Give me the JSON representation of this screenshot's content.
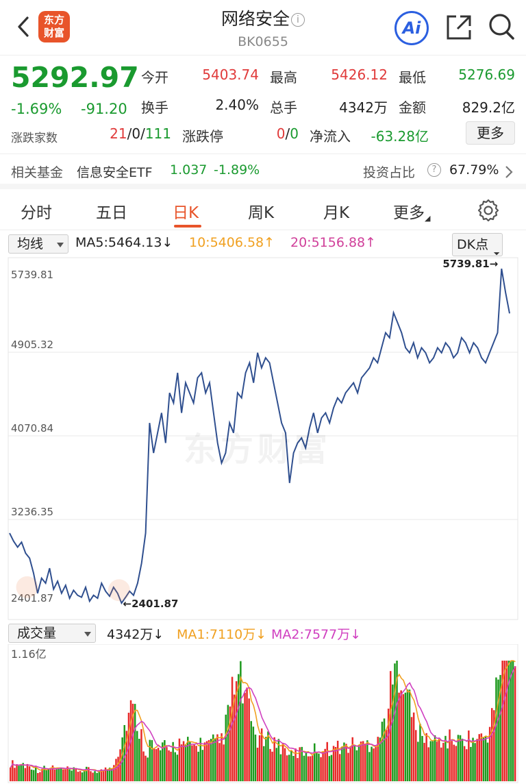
{
  "header": {
    "title": "网络安全",
    "info_glyph": "i",
    "code": "BK0655",
    "logo_text_line1": "东方",
    "logo_text_line2": "财富",
    "ai_label": "Ai"
  },
  "quote": {
    "price": "5292.97",
    "change_pct": "-1.69%",
    "change_abs": "-91.20",
    "open_label": "今开",
    "open_value": "5403.74",
    "high_label": "最高",
    "high_value": "5426.12",
    "low_label": "最低",
    "low_value": "5276.69",
    "turnover_label": "换手",
    "turnover_value": "2.40%",
    "volume_label": "总手",
    "volume_value": "4342万",
    "amount_label": "金额",
    "amount_value": "829.2亿",
    "breadth_label": "涨跌家数",
    "breadth_up": "21",
    "breadth_flat": "0",
    "breadth_down": "111",
    "sep": "/",
    "limit_label": "涨跌停",
    "limit_up": "0",
    "limit_down": "0",
    "netflow_label": "净流入",
    "netflow_value": "-63.28亿",
    "more_label": "更多"
  },
  "fund": {
    "label": "相关基金",
    "name": "信息安全ETF",
    "price": "1.037",
    "change": "-1.89%",
    "ratio_label": "投资占比",
    "ratio_help": "?",
    "ratio_value": "67.79%"
  },
  "tabs": [
    "分时",
    "五日",
    "日K",
    "周K",
    "月K",
    "更多"
  ],
  "ma": {
    "selector": "均线",
    "ma5": "MA5:5464.13",
    "ma5_arrow": "↓",
    "ma10": "10:5406.58",
    "ma10_arrow": "↑",
    "ma20": "20:5156.88",
    "ma20_arrow": "↑",
    "dk_label": "DK点"
  },
  "volume_row": {
    "selector": "成交量",
    "vol": "4342万",
    "vol_arrow": "↓",
    "ma1": "MA1:7110万",
    "ma1_arrow": "↓",
    "ma2": "MA2:7577万",
    "ma2_arrow": "↓"
  },
  "watermark": "东方财富",
  "chart_data": {
    "type": "line",
    "y_ticks": [
      "5739.81",
      "4905.32",
      "4070.84",
      "3236.35",
      "2401.87"
    ],
    "ylim": [
      2401.87,
      5739.81
    ],
    "max_label": "5739.81",
    "min_label": "2401.87",
    "line_color": "#2f4f8f",
    "close": [
      3100,
      3020,
      2960,
      3010,
      2900,
      2850,
      2700,
      2500,
      2650,
      2600,
      2750,
      2540,
      2620,
      2500,
      2580,
      2450,
      2530,
      2480,
      2460,
      2560,
      2420,
      2480,
      2450,
      2600,
      2520,
      2470,
      2560,
      2500,
      2401.87,
      2460,
      2520,
      2480,
      2600,
      2800,
      3100,
      4200,
      3900,
      4100,
      4300,
      4000,
      4500,
      4400,
      4700,
      4300,
      4600,
      4500,
      4400,
      4650,
      4700,
      4500,
      4600,
      4300,
      4000,
      3800,
      3900,
      4200,
      4100,
      4500,
      4450,
      4700,
      4800,
      4600,
      4900,
      4750,
      4850,
      4800,
      4600,
      4400,
      4200,
      4100,
      3600,
      3900,
      4000,
      4050,
      3950,
      4150,
      4300,
      4100,
      4250,
      4300,
      4200,
      4350,
      4450,
      4400,
      4500,
      4550,
      4600,
      4500,
      4650,
      4700,
      4750,
      4850,
      4800,
      4950,
      5100,
      5050,
      5300,
      5200,
      5100,
      4950,
      4900,
      5000,
      4850,
      4950,
      4900,
      4800,
      4850,
      4950,
      4900,
      5000,
      4950,
      4850,
      4900,
      5050,
      5000,
      4900,
      5000,
      4950,
      4850,
      4800,
      4900,
      5000,
      5100,
      5739.81,
      5500,
      5292.97
    ]
  },
  "volume_data": {
    "type": "bar",
    "ylim_label": "1.16亿",
    "ymax": 116000000
  }
}
